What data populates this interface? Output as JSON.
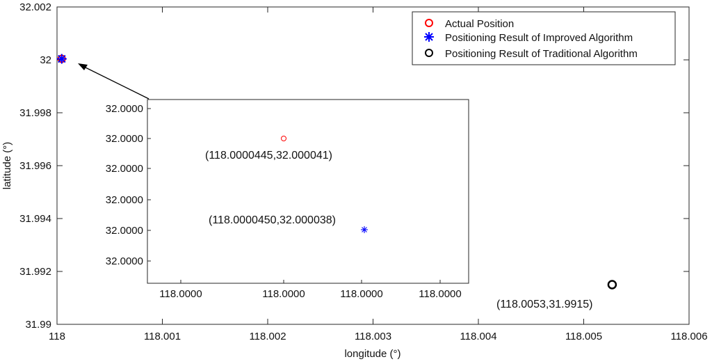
{
  "chart_data": {
    "type": "scatter",
    "xlabel": "longitude (°)",
    "ylabel": "latitude (°)",
    "xlim": [
      118,
      118.006
    ],
    "ylim": [
      31.99,
      32.002
    ],
    "xticks": [
      "118",
      "118.001",
      "118.002",
      "118.003",
      "118.004",
      "118.005",
      "118.006"
    ],
    "yticks": [
      "31.99",
      "31.992",
      "31.994",
      "31.996",
      "31.998",
      "32",
      "32.002"
    ],
    "grid": false,
    "legend_position": "top-right",
    "series": [
      {
        "name": "Actual Position",
        "marker": "circle",
        "color": "#ff0000",
        "points": [
          {
            "x": 118.0000445,
            "y": 32.000041
          }
        ]
      },
      {
        "name": "Positioning Result of Improved Algorithm",
        "marker": "asterisk",
        "color": "#0000ff",
        "points": [
          {
            "x": 118.000045,
            "y": 32.000038
          }
        ]
      },
      {
        "name": "Positioning Result of Traditional Algorithm",
        "marker": "circle",
        "color": "#000000",
        "points": [
          {
            "x": 118.00527,
            "y": 31.9915
          }
        ]
      }
    ],
    "annotations": [
      "(118.0053,31.9915)"
    ],
    "inset": {
      "description_type": "zoomed view",
      "xticks": [
        "118.0000",
        "118.0000",
        "118.0000",
        "118.0000"
      ],
      "yticks": [
        "32.0000",
        "32.0000",
        "32.0000",
        "32.0000",
        "32.0000",
        "32.0000"
      ],
      "labels": [
        "(118.0000445,32.000041)",
        "(118.0000450,32.000038)"
      ]
    }
  }
}
